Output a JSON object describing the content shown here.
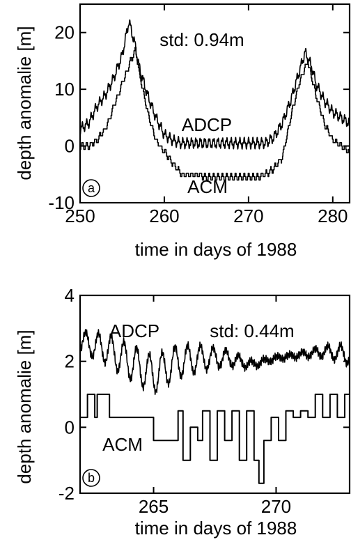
{
  "chart_data": [
    {
      "type": "line",
      "panel": "a",
      "xlabel": "time in days of 1988",
      "ylabel": "depth anomalie [m]",
      "xlim": [
        250,
        282
      ],
      "ylim": [
        -10,
        25
      ],
      "xticks": [
        250,
        260,
        270,
        280
      ],
      "yticks": [
        -10,
        0,
        10,
        20
      ],
      "annotations": {
        "std": "std: 0.94m"
      },
      "series": [
        {
          "name": "ADCP",
          "x": [
            250,
            251,
            252,
            253,
            254,
            255,
            255.8,
            256.5,
            257,
            258,
            259,
            260,
            261,
            262,
            263,
            264,
            265,
            266,
            267,
            268,
            269,
            270,
            271,
            272,
            273,
            274,
            275,
            276,
            276.7,
            277.5,
            278,
            279,
            280,
            281,
            282
          ],
          "y": [
            3,
            4,
            7,
            9,
            12,
            16,
            22,
            18,
            14,
            9,
            5,
            2,
            1,
            0.5,
            0.5,
            0.5,
            0.5,
            0.5,
            0.5,
            0.5,
            0.5,
            0.5,
            0.5,
            0.5,
            1.5,
            4,
            8,
            13,
            16.5,
            14,
            11,
            8,
            6,
            5,
            4
          ],
          "wiggle_amplitude": 0.7
        },
        {
          "name": "ACM",
          "x": [
            250,
            251,
            252,
            253,
            254,
            255,
            256,
            256.6,
            257,
            258,
            259,
            260,
            261,
            262,
            263,
            264,
            265,
            266,
            267,
            268,
            269,
            270,
            271,
            272,
            273,
            274,
            275,
            276,
            277,
            278,
            279,
            280,
            281,
            282
          ],
          "y": [
            0,
            0,
            1,
            3,
            7,
            11,
            15,
            17,
            13,
            6,
            1,
            -1,
            -3,
            -5,
            -5,
            -5,
            -5.5,
            -5.5,
            -5.5,
            -5.5,
            -5.5,
            -5.5,
            -5.5,
            -5,
            -4,
            -2,
            5,
            11,
            15,
            9,
            4,
            1,
            0,
            -1
          ],
          "step": 0.6
        }
      ]
    },
    {
      "type": "line",
      "panel": "b",
      "xlabel": "time in days of 1988",
      "ylabel": "depth anomalie [m]",
      "xlim": [
        262,
        273
      ],
      "ylim": [
        -2,
        4
      ],
      "xticks": [
        265,
        270
      ],
      "yticks": [
        -2,
        0,
        2,
        4
      ],
      "annotations": {
        "std": "std: 0.44m"
      },
      "series": [
        {
          "name": "ADCP",
          "x": [
            262,
            263,
            264,
            265,
            266,
            267,
            268,
            269,
            270,
            271,
            272,
            273
          ],
          "y": [
            2.6,
            2.4,
            2.0,
            1.6,
            2.0,
            2.1,
            2.1,
            1.9,
            2.1,
            2.2,
            2.3,
            2.2
          ],
          "oscillation_amplitude": 0.55,
          "oscillation_period_days": 0.52
        },
        {
          "name": "ACM",
          "x": [
            262,
            262.3,
            262.6,
            262.7,
            262.9,
            263.2,
            263.3,
            265,
            265.5,
            265.8,
            266,
            266.2,
            266.5,
            266.8,
            267,
            267.3,
            267.6,
            267.9,
            268.2,
            268.5,
            268.8,
            269.1,
            269.3,
            269.5,
            269.8,
            270.1,
            270.4,
            270.7,
            271,
            271.3,
            271.6,
            271.9,
            272.2,
            272.5,
            272.8,
            273
          ],
          "y": [
            0.3,
            1,
            0.3,
            1,
            1,
            0.3,
            0.3,
            -0.4,
            -0.4,
            -0.4,
            0.5,
            -1,
            0,
            -0.4,
            0.5,
            -1,
            0.5,
            -0.4,
            0.5,
            -1,
            0.5,
            -1,
            -1.7,
            -0.4,
            0.3,
            -0.4,
            0.5,
            0.3,
            0.5,
            0.3,
            1,
            0.3,
            1,
            0.3,
            1,
            0.3
          ]
        }
      ]
    }
  ],
  "panel_a": {
    "badge": "a",
    "std_text": "std: 0.94m",
    "label_adcp": "ADCP",
    "label_acm": "ACM",
    "ylabel": "depth anomalie [m]",
    "xlabel": "time in days of 1988"
  },
  "panel_b": {
    "badge": "b",
    "std_text": "std: 0.44m",
    "label_adcp": "ADCP",
    "label_acm": "ACM",
    "ylabel": "depth anomalie [m]",
    "xlabel": "time in days of 1988"
  }
}
